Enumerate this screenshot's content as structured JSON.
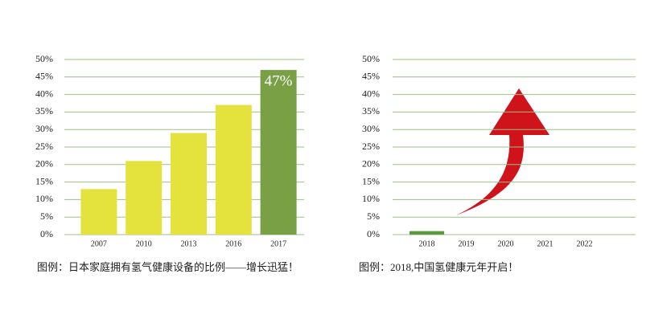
{
  "chart_data": [
    {
      "type": "bar",
      "categories": [
        "2007",
        "2010",
        "2013",
        "2016",
        "2017"
      ],
      "values": [
        13,
        21,
        29,
        37,
        47
      ],
      "value_labels": [
        null,
        null,
        null,
        null,
        "47%"
      ],
      "colors": [
        "#e4e23c",
        "#e4e23c",
        "#e4e23c",
        "#e4e23c",
        "#7aa046"
      ],
      "ylim": [
        0,
        50
      ],
      "yticks": [
        {
          "value": 0,
          "label": "0%"
        },
        {
          "value": 5,
          "label": "5%"
        },
        {
          "value": 10,
          "label": "10%"
        },
        {
          "value": 15,
          "label": "15%"
        },
        {
          "value": 20,
          "label": "20%"
        },
        {
          "value": 25,
          "label": "25%"
        },
        {
          "value": 30,
          "label": "30%"
        },
        {
          "value": 35,
          "label": "35%"
        },
        {
          "value": 40,
          "label": "40%"
        },
        {
          "value": 45,
          "label": "45%"
        },
        {
          "value": 50,
          "label": "50%"
        }
      ],
      "grid": true,
      "caption": "图例：日本家庭拥有氢气健康设备的比例——增长迅猛！"
    },
    {
      "type": "bar",
      "categories": [
        "2018",
        "2019",
        "2020",
        "2021",
        "2022"
      ],
      "values": [
        1,
        null,
        null,
        null,
        null
      ],
      "colors": [
        "#5a9a3c",
        null,
        null,
        null,
        null
      ],
      "ylim": [
        0,
        50
      ],
      "yticks": [
        {
          "value": 0,
          "label": "0%"
        },
        {
          "value": 5,
          "label": "5%"
        },
        {
          "value": 10,
          "label": "10%"
        },
        {
          "value": 15,
          "label": "15%"
        },
        {
          "value": 20,
          "label": "20%"
        },
        {
          "value": 25,
          "label": "25%"
        },
        {
          "value": 30,
          "label": "30%"
        },
        {
          "value": 35,
          "label": "35%"
        },
        {
          "value": 40,
          "label": "40%"
        },
        {
          "value": 45,
          "label": "45%"
        },
        {
          "value": 50,
          "label": "50%"
        }
      ],
      "grid": true,
      "caption": "图例：2018,中国氢健康元年开启！"
    }
  ]
}
